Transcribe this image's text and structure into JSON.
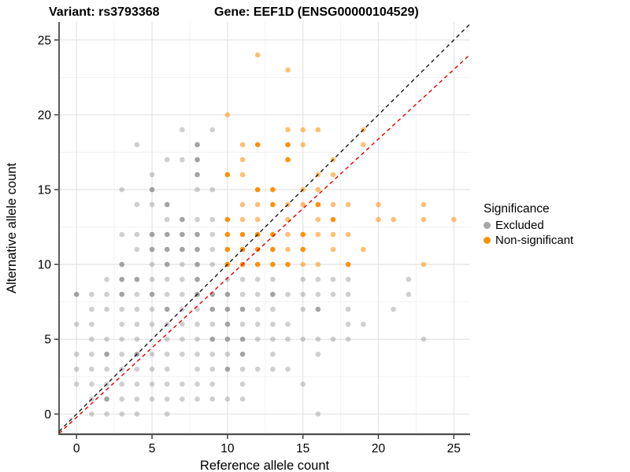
{
  "titles": {
    "variant": "Variant: rs3793368",
    "gene": "Gene: EEF1D (ENSG00000104529)"
  },
  "axes": {
    "x_label": "Reference allele count",
    "y_label": "Alternative allele count",
    "x_ticks": [
      0,
      5,
      10,
      15,
      20,
      25
    ],
    "y_ticks": [
      0,
      5,
      10,
      15,
      20,
      25
    ],
    "minor_ticks": [
      2.5,
      7.5,
      12.5,
      17.5,
      22.5
    ]
  },
  "legend": {
    "title": "Significance",
    "items": [
      {
        "label": "Excluded",
        "color": "#a6a6a6"
      },
      {
        "label": "Non-significant",
        "color": "#ff9100"
      }
    ]
  },
  "chart_data": {
    "type": "scatter",
    "title": "Variant: rs3793368 / Gene: EEF1D (ENSG00000104529)",
    "xlabel": "Reference allele count",
    "ylabel": "Alternative allele count",
    "x_range": [
      -1.16,
      26.08
    ],
    "y_range": [
      -1.35,
      26.2
    ],
    "grid": "on",
    "legend_position": "right",
    "point_radius": 3.3,
    "series": [
      {
        "name": "Excluded",
        "color": "#8c8c8c",
        "alpha": 0.42,
        "alpha_dark": 0.8,
        "points": [
          [
            7,
            19
          ],
          [
            9,
            19
          ],
          [
            4,
            18
          ],
          [
            8,
            18,
            1
          ],
          [
            6,
            17
          ],
          [
            7,
            17
          ],
          [
            8,
            17,
            1
          ],
          [
            5,
            16
          ],
          [
            8,
            16,
            1
          ],
          [
            3,
            15
          ],
          [
            5,
            15,
            1
          ],
          [
            8,
            15
          ],
          [
            9,
            15
          ],
          [
            4,
            14
          ],
          [
            5,
            14
          ],
          [
            6,
            14,
            1
          ],
          [
            6,
            13
          ],
          [
            7,
            13,
            1
          ],
          [
            8,
            13
          ],
          [
            9,
            13
          ],
          [
            3,
            12
          ],
          [
            4,
            12
          ],
          [
            5,
            12,
            1
          ],
          [
            6,
            12,
            1
          ],
          [
            7,
            12,
            1
          ],
          [
            8,
            12,
            1
          ],
          [
            9,
            12
          ],
          [
            4,
            11
          ],
          [
            5,
            11,
            1
          ],
          [
            6,
            11,
            1
          ],
          [
            7,
            11,
            1
          ],
          [
            8,
            11,
            1
          ],
          [
            9,
            11
          ],
          [
            3,
            10,
            1
          ],
          [
            5,
            10
          ],
          [
            6,
            10,
            1
          ],
          [
            7,
            10
          ],
          [
            8,
            10,
            1
          ],
          [
            9,
            10
          ],
          [
            2,
            9
          ],
          [
            3,
            9,
            1
          ],
          [
            4,
            9,
            1
          ],
          [
            5,
            9
          ],
          [
            6,
            9
          ],
          [
            7,
            9
          ],
          [
            8,
            9,
            1
          ],
          [
            10,
            9
          ],
          [
            11,
            9
          ],
          [
            12,
            9
          ],
          [
            13,
            9
          ],
          [
            15,
            9
          ],
          [
            16,
            9
          ],
          [
            17,
            9
          ],
          [
            18,
            9
          ],
          [
            22,
            9
          ],
          [
            0,
            8,
            1
          ],
          [
            1,
            8
          ],
          [
            2,
            8
          ],
          [
            3,
            8,
            1
          ],
          [
            4,
            8
          ],
          [
            5,
            8,
            1
          ],
          [
            6,
            8
          ],
          [
            7,
            8
          ],
          [
            8,
            8,
            1
          ],
          [
            9,
            8,
            1
          ],
          [
            10,
            8,
            1
          ],
          [
            11,
            8
          ],
          [
            12,
            8
          ],
          [
            13,
            8,
            1
          ],
          [
            14,
            8
          ],
          [
            15,
            8
          ],
          [
            16,
            8
          ],
          [
            17,
            8
          ],
          [
            18,
            8
          ],
          [
            22,
            8
          ],
          [
            1,
            7
          ],
          [
            2,
            7
          ],
          [
            3,
            7
          ],
          [
            4,
            7
          ],
          [
            5,
            7
          ],
          [
            6,
            7,
            1
          ],
          [
            7,
            7
          ],
          [
            8,
            7
          ],
          [
            9,
            7,
            1
          ],
          [
            10,
            7,
            1
          ],
          [
            11,
            7,
            1
          ],
          [
            12,
            7
          ],
          [
            13,
            7
          ],
          [
            15,
            7
          ],
          [
            16,
            7,
            1
          ],
          [
            18,
            7
          ],
          [
            21,
            7
          ],
          [
            0,
            6
          ],
          [
            1,
            6
          ],
          [
            3,
            6
          ],
          [
            4,
            6
          ],
          [
            5,
            6
          ],
          [
            6,
            6
          ],
          [
            7,
            6
          ],
          [
            8,
            6
          ],
          [
            9,
            6
          ],
          [
            10,
            6,
            1
          ],
          [
            11,
            6
          ],
          [
            12,
            6
          ],
          [
            13,
            6
          ],
          [
            14,
            6
          ],
          [
            18,
            6
          ],
          [
            19,
            6
          ],
          [
            1,
            5
          ],
          [
            2,
            5
          ],
          [
            3,
            5
          ],
          [
            4,
            5
          ],
          [
            6,
            5
          ],
          [
            7,
            5
          ],
          [
            8,
            5
          ],
          [
            9,
            5,
            1
          ],
          [
            10,
            5,
            1
          ],
          [
            11,
            5,
            1
          ],
          [
            12,
            5
          ],
          [
            13,
            5
          ],
          [
            14,
            5
          ],
          [
            15,
            5
          ],
          [
            16,
            5
          ],
          [
            17,
            5
          ],
          [
            18,
            5
          ],
          [
            23,
            5
          ],
          [
            0,
            4
          ],
          [
            1,
            4
          ],
          [
            2,
            4,
            1
          ],
          [
            3,
            4
          ],
          [
            4,
            4,
            1
          ],
          [
            5,
            4
          ],
          [
            6,
            4
          ],
          [
            7,
            4
          ],
          [
            8,
            4
          ],
          [
            9,
            4
          ],
          [
            10,
            4
          ],
          [
            11,
            4,
            1
          ],
          [
            13,
            4
          ],
          [
            16,
            4
          ],
          [
            0,
            3
          ],
          [
            1,
            3
          ],
          [
            2,
            3
          ],
          [
            3,
            3
          ],
          [
            4,
            3
          ],
          [
            5,
            3
          ],
          [
            6,
            3
          ],
          [
            8,
            3
          ],
          [
            9,
            3
          ],
          [
            10,
            3,
            1
          ],
          [
            11,
            3
          ],
          [
            12,
            3
          ],
          [
            13,
            3
          ],
          [
            14,
            3
          ],
          [
            0,
            2
          ],
          [
            1,
            2
          ],
          [
            2,
            2
          ],
          [
            3,
            2
          ],
          [
            4,
            2
          ],
          [
            5,
            2
          ],
          [
            6,
            2
          ],
          [
            7,
            2
          ],
          [
            8,
            2
          ],
          [
            9,
            2
          ],
          [
            11,
            2
          ],
          [
            15,
            2
          ],
          [
            1,
            1
          ],
          [
            2,
            1,
            1
          ],
          [
            3,
            1
          ],
          [
            4,
            1
          ],
          [
            5,
            1
          ],
          [
            6,
            1
          ],
          [
            7,
            1
          ],
          [
            8,
            1
          ],
          [
            9,
            1
          ],
          [
            10,
            1
          ],
          [
            11,
            1
          ],
          [
            1,
            0
          ],
          [
            2,
            0
          ],
          [
            3,
            0
          ],
          [
            4,
            0
          ],
          [
            6,
            0
          ],
          [
            16,
            0
          ]
        ]
      },
      {
        "name": "Non-significant",
        "color": "#ff8c00",
        "alpha": 0.55,
        "alpha_dark": 0.95,
        "points": [
          [
            12,
            24
          ],
          [
            14,
            23
          ],
          [
            10,
            20
          ],
          [
            14,
            19
          ],
          [
            15,
            19
          ],
          [
            16,
            19
          ],
          [
            19,
            19
          ],
          [
            11,
            18
          ],
          [
            12,
            18,
            1
          ],
          [
            14,
            18,
            1
          ],
          [
            15,
            18
          ],
          [
            19,
            18
          ],
          [
            11,
            17
          ],
          [
            14,
            17,
            1
          ],
          [
            17,
            17
          ],
          [
            10,
            16,
            1
          ],
          [
            11,
            16
          ],
          [
            16,
            16
          ],
          [
            17,
            16
          ],
          [
            12,
            15,
            1
          ],
          [
            13,
            15,
            1
          ],
          [
            15,
            15
          ],
          [
            16,
            15
          ],
          [
            11,
            14
          ],
          [
            12,
            14
          ],
          [
            13,
            14,
            1
          ],
          [
            14,
            14
          ],
          [
            15,
            14
          ],
          [
            16,
            14,
            1
          ],
          [
            17,
            14
          ],
          [
            18,
            14
          ],
          [
            20,
            14
          ],
          [
            23,
            14
          ],
          [
            10,
            13,
            1
          ],
          [
            11,
            13
          ],
          [
            12,
            13
          ],
          [
            14,
            13
          ],
          [
            16,
            13
          ],
          [
            17,
            13,
            1
          ],
          [
            20,
            13
          ],
          [
            21,
            13
          ],
          [
            23,
            13
          ],
          [
            25,
            13
          ],
          [
            10,
            12,
            1
          ],
          [
            11,
            12,
            1
          ],
          [
            12,
            12,
            1
          ],
          [
            13,
            12,
            1
          ],
          [
            14,
            12
          ],
          [
            15,
            12,
            1
          ],
          [
            16,
            12
          ],
          [
            17,
            12
          ],
          [
            18,
            12
          ],
          [
            10,
            11,
            1
          ],
          [
            11,
            11,
            1
          ],
          [
            12,
            11,
            1
          ],
          [
            13,
            11,
            1
          ],
          [
            14,
            11
          ],
          [
            15,
            11,
            1
          ],
          [
            17,
            11
          ],
          [
            19,
            11
          ],
          [
            10,
            10,
            1
          ],
          [
            11,
            10,
            1
          ],
          [
            12,
            10,
            1
          ],
          [
            13,
            10,
            1
          ],
          [
            14,
            10,
            1
          ],
          [
            15,
            10
          ],
          [
            16,
            10
          ],
          [
            18,
            10,
            1
          ],
          [
            23,
            10
          ]
        ]
      }
    ],
    "abline": [
      {
        "name": "identity-line",
        "slope": 1,
        "intercept": 0,
        "color": "#1a1a1a",
        "dash": "5,4",
        "width": 1.4
      },
      {
        "name": "expected-ratio-line",
        "slope": 0.93,
        "intercept": -0.22,
        "color": "#e60000",
        "dash": "5,4",
        "width": 1.4
      }
    ]
  }
}
